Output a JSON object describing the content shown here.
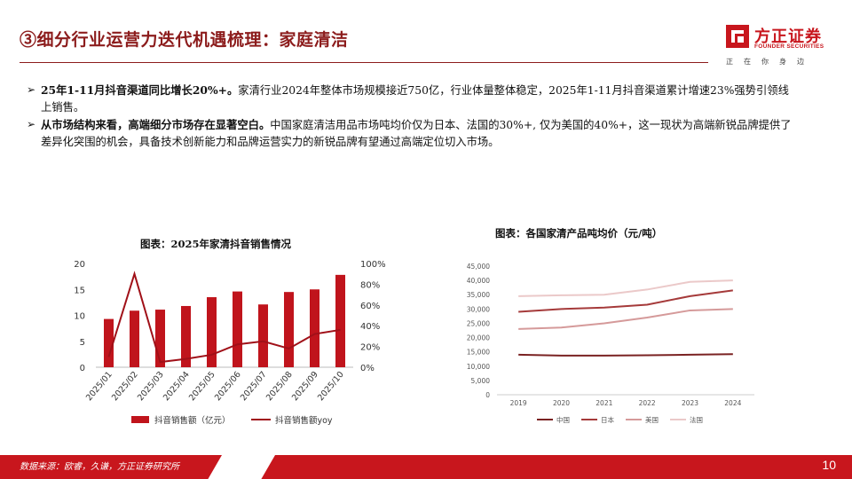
{
  "header": {
    "title": "③细分行业运营力迭代机遇梳理：家庭清洁",
    "logo": {
      "name_cn": "方正证券",
      "name_en": "FOUNDER SECURITIES",
      "slogan": "正在你身边"
    }
  },
  "bullets": [
    {
      "bold": "25年1-11月抖音渠道同比增长20%+。",
      "text": "家清行业2024年整体市场规模接近750亿，行业体量整体稳定，2025年1-11月抖音渠道累计增速23%强势引领线上销售。"
    },
    {
      "bold": "从市场结构来看，高端细分市场存在显著空白。",
      "text": "中国家庭清洁用品市场吨均价仅为日本、法国的30%+, 仅为美国的40%+，这一现状为高端新锐品牌提供了差异化突围的机会，具备技术创新能力和品牌运营实力的新锐品牌有望通过高端定位切入市场。"
    }
  ],
  "chart_data": [
    {
      "type": "bar+line",
      "title": "图表：2025年家清抖音销售情况",
      "categories": [
        "2025/01",
        "2025/02",
        "2025/03",
        "2025/04",
        "2025/05",
        "2025/06",
        "2025/07",
        "2025/08",
        "2025/09",
        "2025/10"
      ],
      "series": [
        {
          "name": "抖音销售额（亿元）",
          "type": "bar",
          "axis": "left",
          "color": "#c0141c",
          "values": [
            9.3,
            10.9,
            11.1,
            11.8,
            13.5,
            14.6,
            12.1,
            14.5,
            15.0,
            17.8
          ]
        },
        {
          "name": "抖音销售额yoy",
          "type": "line",
          "axis": "right",
          "color": "#a01018",
          "values": [
            10,
            90,
            5,
            8,
            12,
            22,
            25,
            18,
            32,
            36
          ]
        }
      ],
      "left_axis": {
        "min": 0,
        "max": 20,
        "ticks": [
          "0",
          "5",
          "10",
          "15",
          "20"
        ]
      },
      "right_axis": {
        "min": 0,
        "max": 100,
        "ticks": [
          "0%",
          "20%",
          "40%",
          "60%",
          "80%",
          "100%"
        ]
      }
    },
    {
      "type": "line",
      "title": "图表：各国家清产品吨均价（元/吨）",
      "categories": [
        "2019",
        "2020",
        "2021",
        "2022",
        "2023",
        "2024"
      ],
      "series": [
        {
          "name": "中国",
          "color": "#7a2222",
          "values": [
            14000,
            13700,
            13700,
            13800,
            14000,
            14200
          ]
        },
        {
          "name": "日本",
          "color": "#a53a3a",
          "values": [
            29000,
            30000,
            30500,
            31500,
            34500,
            36500
          ]
        },
        {
          "name": "美国",
          "color": "#d59a9a",
          "values": [
            23000,
            23500,
            25000,
            27000,
            29500,
            30000
          ]
        },
        {
          "name": "法国",
          "color": "#ebc9c9",
          "values": [
            34500,
            34800,
            35000,
            36800,
            39500,
            40000
          ]
        }
      ],
      "y_axis": {
        "min": 0,
        "max": 45000,
        "ticks": [
          "0",
          "5,000",
          "10,000",
          "15,000",
          "20,000",
          "25,000",
          "30,000",
          "35,000",
          "40,000",
          "45,000"
        ]
      }
    }
  ],
  "footer": {
    "source": "数据来源：欧睿，久谦，方正证券研究所",
    "page": "10"
  }
}
